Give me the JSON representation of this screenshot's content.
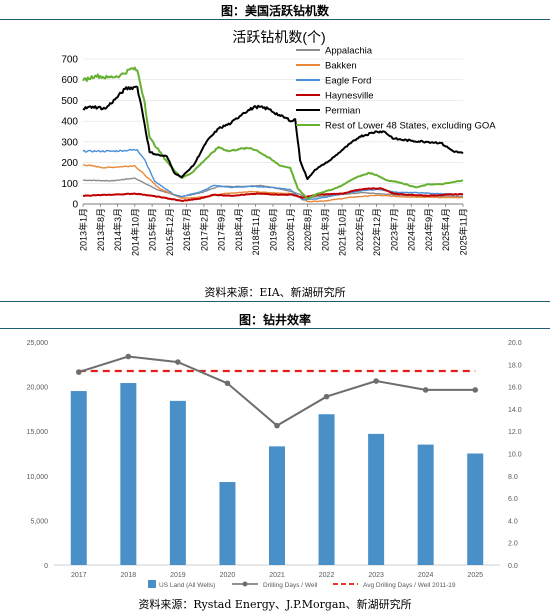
{
  "figure1": {
    "caption": "图：美国活跃钻机数",
    "source": "资料来源：EIA、新湖研究所"
  },
  "figure2": {
    "caption": "图：钻井效率",
    "source": "资料来源：Rystad Energy、J.P.Morgan、新湖研究所"
  },
  "chart_data": [
    {
      "type": "line",
      "title": "活跃钻机数(个)",
      "ylim": [
        0,
        700
      ],
      "yticks": [
        0,
        100,
        200,
        300,
        400,
        500,
        600,
        700
      ],
      "xtick_labels": [
        "2013年1月",
        "2013年6月",
        "2013年11月",
        "2014年4月",
        "2014年9月",
        "2015年2月",
        "2015年7月",
        "2015年12月",
        "2016年5月",
        "2016年10月",
        "2017年3月",
        "2017年8月",
        "2018年1月",
        "2018年6月",
        "2018年11月",
        "2019年4月",
        "2019年9月",
        "2020年2月",
        "2020年7月",
        "2020年12月",
        "2021年5月",
        "2021年10月",
        "2022年3月",
        "2022年8月",
        "2023年1月",
        "2023年6月",
        "2023年11月",
        "2024年4月",
        "2024年9月",
        "2025年2月",
        "2025年7月"
      ],
      "xtick_display": [
        "2013年1月",
        "2013年8月",
        "2014年3月",
        "2014年10月",
        "2015年5月",
        "2015年12月",
        "2016年7月",
        "2017年2月",
        "2017年9月",
        "2018年4月",
        "2018年11月",
        "2019年6月",
        "2020年1月",
        "2020年8月",
        "2021年3月",
        "2021年10月",
        "2022年5月",
        "2022年12月",
        "2023年7月",
        "2024年2月",
        "2024年9月",
        "2025年4月",
        "2025年11月"
      ],
      "x_unit": "months since 2013-01 at key points",
      "legend_position": "top-right",
      "colors": {
        "Appalachia": "#8c8c8c",
        "Bakken": "#e8883a",
        "Eagle Ford": "#4a90d9",
        "Haynesville": "#c00000",
        "Permian": "#000000",
        "Rest of Lower 48 States, excluding GOA": "#66b032"
      },
      "series": [
        {
          "name": "Appalachia",
          "points": [
            [
              "2013-01",
              115
            ],
            [
              "2014-01",
              112
            ],
            [
              "2014-10",
              125
            ],
            [
              "2015-02",
              100
            ],
            [
              "2015-08",
              65
            ],
            [
              "2016-05",
              35
            ],
            [
              "2017-01",
              55
            ],
            [
              "2017-08",
              85
            ],
            [
              "2018-06",
              85
            ],
            [
              "2019-01",
              90
            ],
            [
              "2019-10",
              70
            ],
            [
              "2020-03",
              55
            ],
            [
              "2020-08",
              30
            ],
            [
              "2021-06",
              42
            ],
            [
              "2022-06",
              55
            ],
            [
              "2023-01",
              50
            ],
            [
              "2023-11",
              42
            ],
            [
              "2024-09",
              38
            ],
            [
              "2025-06",
              38
            ],
            [
              "2025-11",
              35
            ]
          ]
        },
        {
          "name": "Bakken",
          "points": [
            [
              "2013-01",
              190
            ],
            [
              "2013-10",
              175
            ],
            [
              "2014-10",
              185
            ],
            [
              "2015-02",
              140
            ],
            [
              "2015-08",
              75
            ],
            [
              "2016-05",
              28
            ],
            [
              "2017-03",
              35
            ],
            [
              "2017-10",
              50
            ],
            [
              "2018-09",
              60
            ],
            [
              "2019-04",
              55
            ],
            [
              "2020-02",
              50
            ],
            [
              "2020-08",
              12
            ],
            [
              "2021-03",
              15
            ],
            [
              "2022-02",
              33
            ],
            [
              "2022-12",
              42
            ],
            [
              "2023-11",
              35
            ],
            [
              "2024-09",
              33
            ],
            [
              "2025-11",
              30
            ]
          ]
        },
        {
          "name": "Eagle Ford",
          "points": [
            [
              "2013-01",
              255
            ],
            [
              "2013-06",
              255
            ],
            [
              "2014-01",
              255
            ],
            [
              "2014-11",
              262
            ],
            [
              "2015-02",
              215
            ],
            [
              "2015-06",
              110
            ],
            [
              "2016-02",
              45
            ],
            [
              "2016-05",
              35
            ],
            [
              "2017-01",
              60
            ],
            [
              "2017-06",
              90
            ],
            [
              "2018-01",
              80
            ],
            [
              "2018-10",
              85
            ],
            [
              "2019-06",
              80
            ],
            [
              "2020-01",
              70
            ],
            [
              "2020-06",
              20
            ],
            [
              "2020-12",
              25
            ],
            [
              "2021-06",
              40
            ],
            [
              "2022-06",
              65
            ],
            [
              "2023-01",
              70
            ],
            [
              "2023-09",
              55
            ],
            [
              "2024-04",
              55
            ],
            [
              "2025-01",
              50
            ],
            [
              "2025-11",
              45
            ]
          ]
        },
        {
          "name": "Haynesville",
          "points": [
            [
              "2013-01",
              40
            ],
            [
              "2014-01",
              45
            ],
            [
              "2014-10",
              50
            ],
            [
              "2015-02",
              45
            ],
            [
              "2015-10",
              30
            ],
            [
              "2016-05",
              15
            ],
            [
              "2016-12",
              25
            ],
            [
              "2017-06",
              45
            ],
            [
              "2018-01",
              40
            ],
            [
              "2018-12",
              50
            ],
            [
              "2019-09",
              45
            ],
            [
              "2020-02",
              45
            ],
            [
              "2020-06",
              30
            ],
            [
              "2020-12",
              45
            ],
            [
              "2021-10",
              50
            ],
            [
              "2022-03",
              65
            ],
            [
              "2022-09",
              75
            ],
            [
              "2023-02",
              75
            ],
            [
              "2023-07",
              50
            ],
            [
              "2024-01",
              45
            ],
            [
              "2024-09",
              40
            ],
            [
              "2025-04",
              45
            ],
            [
              "2025-11",
              48
            ]
          ]
        },
        {
          "name": "Permian",
          "points": [
            [
              "2013-01",
              460
            ],
            [
              "2013-05",
              470
            ],
            [
              "2013-10",
              460
            ],
            [
              "2014-02",
              505
            ],
            [
              "2014-06",
              555
            ],
            [
              "2014-10",
              565
            ],
            [
              "2014-11",
              565
            ],
            [
              "2015-01",
              450
            ],
            [
              "2015-04",
              250
            ],
            [
              "2015-08",
              235
            ],
            [
              "2015-11",
              230
            ],
            [
              "2016-02",
              150
            ],
            [
              "2016-05",
              130
            ],
            [
              "2016-10",
              190
            ],
            [
              "2017-03",
              300
            ],
            [
              "2017-08",
              365
            ],
            [
              "2018-01",
              390
            ],
            [
              "2018-06",
              440
            ],
            [
              "2018-11",
              470
            ],
            [
              "2019-04",
              460
            ],
            [
              "2019-09",
              425
            ],
            [
              "2020-02",
              400
            ],
            [
              "2020-03",
              410
            ],
            [
              "2020-05",
              210
            ],
            [
              "2020-08",
              120
            ],
            [
              "2020-11",
              165
            ],
            [
              "2021-05",
              210
            ],
            [
              "2021-10",
              260
            ],
            [
              "2022-05",
              325
            ],
            [
              "2022-12",
              350
            ],
            [
              "2023-03",
              350
            ],
            [
              "2023-07",
              315
            ],
            [
              "2024-02",
              305
            ],
            [
              "2024-09",
              300
            ],
            [
              "2025-02",
              295
            ],
            [
              "2025-07",
              255
            ],
            [
              "2025-11",
              245
            ]
          ]
        },
        {
          "name": "Rest of Lower 48 States, excluding GOA",
          "points": [
            [
              "2013-01",
              595
            ],
            [
              "2013-06",
              620
            ],
            [
              "2013-11",
              610
            ],
            [
              "2014-04",
              620
            ],
            [
              "2014-09",
              655
            ],
            [
              "2014-11",
              645
            ],
            [
              "2015-02",
              490
            ],
            [
              "2015-04",
              320
            ],
            [
              "2015-07",
              270
            ],
            [
              "2015-12",
              190
            ],
            [
              "2016-05",
              125
            ],
            [
              "2016-09",
              150
            ],
            [
              "2017-03",
              220
            ],
            [
              "2017-08",
              275
            ],
            [
              "2017-12",
              255
            ],
            [
              "2018-04",
              265
            ],
            [
              "2018-09",
              270
            ],
            [
              "2018-12",
              255
            ],
            [
              "2019-04",
              225
            ],
            [
              "2019-09",
              185
            ],
            [
              "2020-01",
              175
            ],
            [
              "2020-04",
              75
            ],
            [
              "2020-08",
              25
            ],
            [
              "2020-12",
              50
            ],
            [
              "2021-06",
              70
            ],
            [
              "2021-10",
              90
            ],
            [
              "2022-03",
              125
            ],
            [
              "2022-09",
              150
            ],
            [
              "2022-12",
              140
            ],
            [
              "2023-04",
              115
            ],
            [
              "2023-09",
              105
            ],
            [
              "2024-04",
              80
            ],
            [
              "2024-09",
              95
            ],
            [
              "2025-02",
              95
            ],
            [
              "2025-07",
              105
            ],
            [
              "2025-11",
              115
            ]
          ]
        }
      ]
    },
    {
      "type": "bar+line",
      "categories": [
        "2017",
        "2018",
        "2019",
        "2020",
        "2021",
        "2022",
        "2023",
        "2024",
        "2025"
      ],
      "ylim_left": [
        0,
        25000
      ],
      "yticks_left": [
        "0",
        "5,000",
        "10,000",
        "15,000",
        "20,000",
        "25,000"
      ],
      "ylim_right": [
        0,
        20
      ],
      "yticks_right": [
        "0.0",
        "2.0",
        "4.0",
        "6.0",
        "8.0",
        "10.0",
        "12.0",
        "14.0",
        "16.0",
        "18.0",
        "20.0"
      ],
      "legend_position": "bottom",
      "series": [
        {
          "name": "US Land (All Wells)",
          "type": "bar",
          "axis": "left",
          "color": "#4a90c8",
          "values": [
            19500,
            20400,
            18400,
            9300,
            13300,
            16900,
            14700,
            13500,
            12500
          ]
        },
        {
          "name": "Drilling Days / Well",
          "type": "line",
          "axis": "right",
          "color": "#6d6d6d",
          "values": [
            17.3,
            18.7,
            18.2,
            16.3,
            12.5,
            15.1,
            16.5,
            15.7,
            15.7
          ]
        },
        {
          "name": "Avg Drilling Days / Well 2011-19",
          "type": "line-dashed",
          "axis": "right",
          "color": "#e41c1c",
          "values": [
            17.4,
            17.4,
            17.4,
            17.4,
            17.4,
            17.4,
            17.4,
            17.4,
            17.4
          ]
        }
      ]
    }
  ]
}
